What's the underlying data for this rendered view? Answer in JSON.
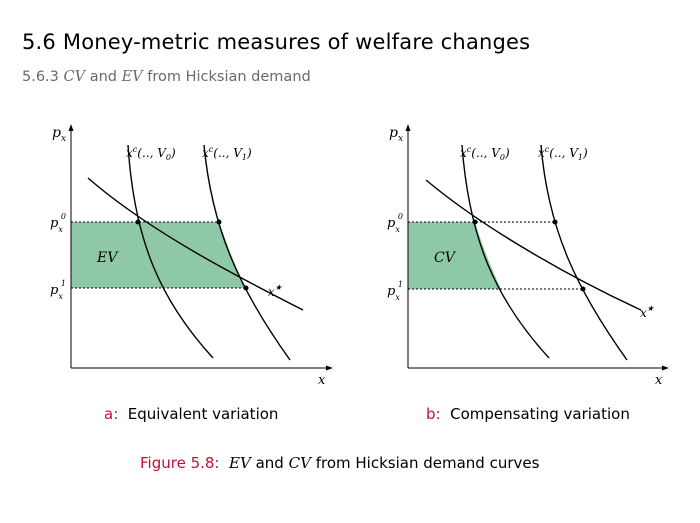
{
  "section_title": "5.6 Money-metric measures of welfare changes",
  "subsection": {
    "number": "5.6.3",
    "cv": "CV",
    "and": "and",
    "ev": "EV",
    "rest": "from Hicksian demand"
  },
  "diagram": {
    "panels": [
      {
        "id": "a",
        "axis_y": "p",
        "axis_y_sub": "x",
        "axis_x": "x",
        "curve_left": {
          "base": "x",
          "sup": "c",
          "args": "(.., V",
          "sub": "0",
          "close": ")"
        },
        "curve_right": {
          "base": "x",
          "sup": "c",
          "args": "(.., V",
          "sub": "1",
          "close": ")"
        },
        "price_high": {
          "base": "p",
          "sub": "x",
          "sup": "0"
        },
        "price_low": {
          "base": "p",
          "sub": "x",
          "sup": "1"
        },
        "area_label": "EV",
        "point_label": {
          "base": "x",
          "sup": "★"
        },
        "caption_tag": "a:",
        "caption_text": "Equivalent variation"
      },
      {
        "id": "b",
        "axis_y": "p",
        "axis_y_sub": "x",
        "axis_x": "x",
        "curve_left": {
          "base": "x",
          "sup": "c",
          "args": "(.., V",
          "sub": "0",
          "close": ")"
        },
        "curve_right": {
          "base": "x",
          "sup": "c",
          "args": "(.., V",
          "sub": "1",
          "close": ")"
        },
        "price_high": {
          "base": "p",
          "sub": "x",
          "sup": "0"
        },
        "price_low": {
          "base": "p",
          "sub": "x",
          "sup": "1"
        },
        "area_label": "CV",
        "point_label": {
          "base": "x",
          "sup": "★"
        },
        "caption_tag": "b:",
        "caption_text": "Compensating variation"
      }
    ],
    "colors": {
      "fill": "#8fc8a6",
      "fill_stroke": "#3b8f5e",
      "line": "#000000"
    }
  },
  "figure_caption": {
    "tag": "Figure 5.8:",
    "ev": "EV",
    "and": "and",
    "cv": "CV",
    "rest": "from Hicksian demand curves"
  }
}
